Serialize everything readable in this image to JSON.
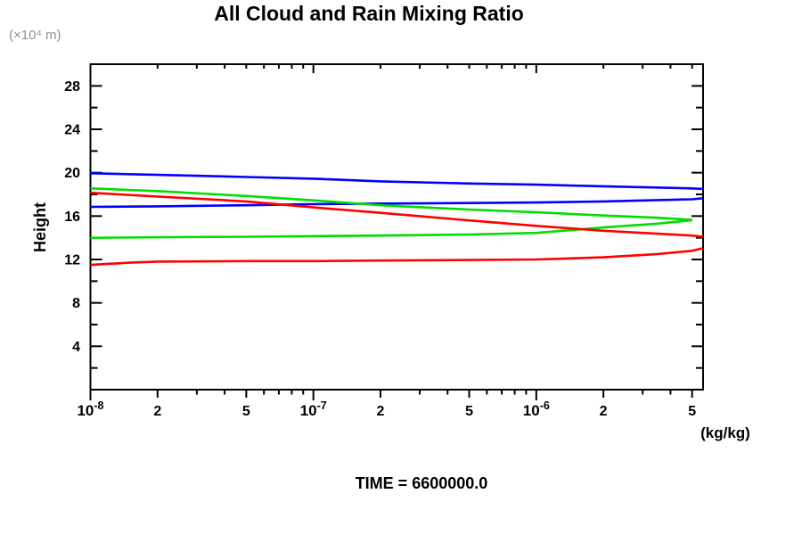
{
  "chart_data": {
    "type": "line",
    "title": "All Cloud and Rain Mixing Ratio",
    "ylabel": "Height",
    "y_units_label": "(×10⁴ m)",
    "x_units_label": "(kg/kg)",
    "annotation": "TIME = 6600000.0",
    "x_scale": "log",
    "xlim": [
      1e-08,
      5.6e-06
    ],
    "ylim": [
      0,
      30
    ],
    "grid": false,
    "legend": "none",
    "frame_color": "#000000",
    "y_major_ticks": [
      4,
      8,
      12,
      16,
      20,
      24,
      28
    ],
    "y_minor_ticks": [
      2,
      6,
      10,
      14,
      18,
      22,
      26,
      30
    ],
    "x_decade_ticks": [
      {
        "value": 1e-08,
        "label": "10^-8"
      },
      {
        "value": 1e-07,
        "label": "10^-7"
      },
      {
        "value": 1e-06,
        "label": "10^-6"
      }
    ],
    "x_labeled_minor_ticks": [
      {
        "value": 2e-08,
        "label": "2"
      },
      {
        "value": 5e-08,
        "label": "5"
      },
      {
        "value": 2e-07,
        "label": "2"
      },
      {
        "value": 5e-07,
        "label": "5"
      },
      {
        "value": 2e-06,
        "label": "2"
      },
      {
        "value": 5e-06,
        "label": "5"
      }
    ],
    "x_minor_ticks": [
      3e-08,
      4e-08,
      6e-08,
      7e-08,
      8e-08,
      9e-08,
      3e-07,
      4e-07,
      6e-07,
      7e-07,
      8e-07,
      9e-07,
      3e-06,
      4e-06
    ],
    "series": [
      {
        "name": "blue-upper-branch",
        "color": "#0000ff",
        "points": [
          [
            1e-08,
            19.95
          ],
          [
            2e-08,
            19.8
          ],
          [
            5e-08,
            19.6
          ],
          [
            1e-07,
            19.45
          ],
          [
            2e-07,
            19.2
          ],
          [
            5e-07,
            19.0
          ],
          [
            1e-06,
            18.9
          ],
          [
            2e-06,
            18.75
          ],
          [
            5e-06,
            18.55
          ],
          [
            5.6e-06,
            18.5
          ]
        ]
      },
      {
        "name": "blue-lower-branch",
        "color": "#0000ff",
        "points": [
          [
            1e-08,
            16.85
          ],
          [
            2e-08,
            16.9
          ],
          [
            5e-08,
            17.0
          ],
          [
            1e-07,
            17.1
          ],
          [
            2e-07,
            17.15
          ],
          [
            5e-07,
            17.2
          ],
          [
            1e-06,
            17.25
          ],
          [
            2e-06,
            17.35
          ],
          [
            5e-06,
            17.55
          ],
          [
            5.6e-06,
            17.65
          ]
        ]
      },
      {
        "name": "green-upper-branch",
        "color": "#00dd00",
        "points": [
          [
            1e-08,
            18.55
          ],
          [
            2e-08,
            18.3
          ],
          [
            5e-08,
            17.85
          ],
          [
            1e-07,
            17.45
          ],
          [
            2e-07,
            17.0
          ],
          [
            5e-07,
            16.6
          ],
          [
            1e-06,
            16.35
          ],
          [
            2e-06,
            16.05
          ],
          [
            3.5e-06,
            15.85
          ],
          [
            5e-06,
            15.65
          ]
        ]
      },
      {
        "name": "green-lower-branch",
        "color": "#00dd00",
        "points": [
          [
            1e-08,
            14.0
          ],
          [
            2e-08,
            14.05
          ],
          [
            5e-08,
            14.1
          ],
          [
            1e-07,
            14.15
          ],
          [
            2e-07,
            14.2
          ],
          [
            5e-07,
            14.3
          ],
          [
            1e-06,
            14.45
          ],
          [
            2e-06,
            14.95
          ],
          [
            3.5e-06,
            15.3
          ],
          [
            5e-06,
            15.62
          ]
        ]
      },
      {
        "name": "red-upper-branch",
        "color": "#ff0000",
        "points": [
          [
            1e-08,
            18.15
          ],
          [
            2e-08,
            17.8
          ],
          [
            5e-08,
            17.35
          ],
          [
            1e-07,
            16.8
          ],
          [
            2e-07,
            16.3
          ],
          [
            5e-07,
            15.6
          ],
          [
            1e-06,
            15.1
          ],
          [
            2e-06,
            14.65
          ],
          [
            5e-06,
            14.2
          ],
          [
            5.6e-06,
            14.1
          ]
        ]
      },
      {
        "name": "red-lower-branch",
        "color": "#ff0000",
        "points": [
          [
            1e-08,
            11.5
          ],
          [
            1.5e-08,
            11.7
          ],
          [
            2e-08,
            11.8
          ],
          [
            5e-08,
            11.85
          ],
          [
            1e-07,
            11.85
          ],
          [
            2e-07,
            11.9
          ],
          [
            5e-07,
            11.95
          ],
          [
            1e-06,
            12.0
          ],
          [
            2e-06,
            12.2
          ],
          [
            3.5e-06,
            12.5
          ],
          [
            5e-06,
            12.8
          ],
          [
            5.6e-06,
            13.05
          ]
        ]
      }
    ]
  }
}
